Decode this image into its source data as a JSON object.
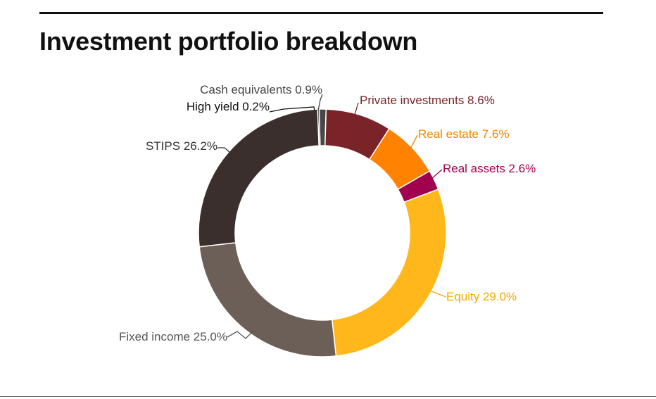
{
  "chart_data": {
    "type": "pie",
    "variant": "donut",
    "title": "Investment portfolio breakdown",
    "unit": "%",
    "slices": [
      {
        "label": "Cash equivalents",
        "value": 0.9,
        "display": "Cash equivalents 0.9%",
        "color": "#474747",
        "label_color": "#444444"
      },
      {
        "label": "Private investments",
        "value": 8.6,
        "display": "Private investments 8.6%",
        "color": "#7a2328",
        "label_color": "#7a2328"
      },
      {
        "label": "Real estate",
        "value": 7.6,
        "display": "Real estate 7.6%",
        "color": "#ff8200",
        "label_color": "#f08400"
      },
      {
        "label": "Real assets",
        "value": 2.6,
        "display": "Real assets 2.6%",
        "color": "#a1004f",
        "label_color": "#a1004f"
      },
      {
        "label": "Equity",
        "value": 29.0,
        "display": "Equity 29.0%",
        "color": "#ffb71b",
        "label_color": "#f2a900"
      },
      {
        "label": "Fixed income",
        "value": 25.0,
        "display": "Fixed income 25.0%",
        "color": "#6c5f57",
        "label_color": "#555555"
      },
      {
        "label": "STIPS",
        "value": 26.2,
        "display": "STIPS 26.2%",
        "color": "#3a2f2c",
        "label_color": "#333333"
      },
      {
        "label": "High yield",
        "value": 0.2,
        "display": "High yield 0.2%",
        "color": "#222222",
        "label_color": "#111111"
      }
    ]
  }
}
